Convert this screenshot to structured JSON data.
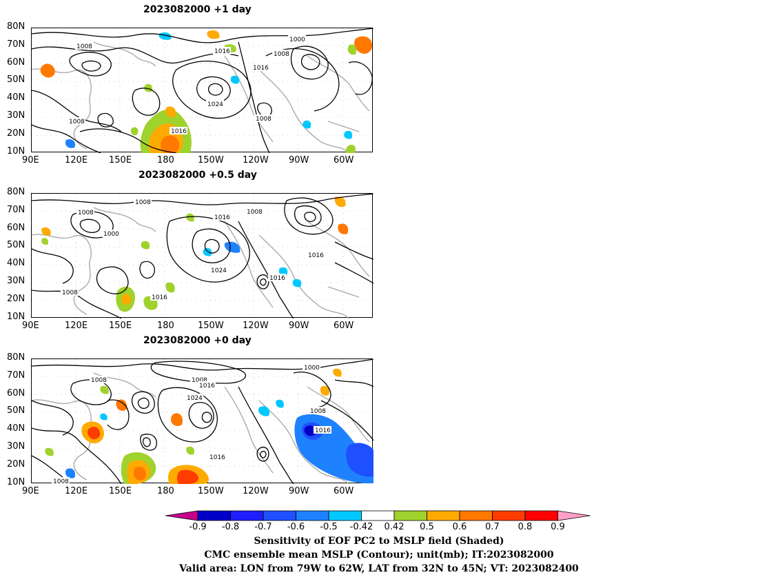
{
  "panels": [
    {
      "title": "2023082000  +1 day",
      "contour_labels": [
        "1008",
        "1016",
        "1000",
        "1008",
        "1016",
        "1024",
        "1008",
        "1008",
        "1016"
      ],
      "lat_ticks": [
        "80N",
        "70N",
        "60N",
        "50N",
        "40N",
        "30N",
        "20N",
        "10N"
      ],
      "lon_ticks": [
        "90E",
        "120E",
        "150E",
        "180",
        "150W",
        "120W",
        "90W",
        "60W"
      ]
    },
    {
      "title": "2023082000  +0.5 day",
      "contour_labels": [
        "1008",
        "1008",
        "1000",
        "1016",
        "1008",
        "1024",
        "1016",
        "1016",
        "1008",
        "1016"
      ],
      "lat_ticks": [
        "80N",
        "70N",
        "60N",
        "50N",
        "40N",
        "30N",
        "20N",
        "10N"
      ],
      "lon_ticks": [
        "90E",
        "120E",
        "150E",
        "180",
        "150W",
        "120W",
        "90W",
        "60W"
      ]
    },
    {
      "title": "2023082000  +0 day",
      "contour_labels": [
        "1008",
        "1008",
        "1016",
        "1024",
        "1000",
        "1008",
        "1016",
        "1016",
        "1008"
      ],
      "lat_ticks": [
        "80N",
        "70N",
        "60N",
        "50N",
        "40N",
        "30N",
        "20N",
        "10N"
      ],
      "lon_ticks": [
        "90E",
        "120E",
        "150E",
        "180",
        "150W",
        "120W",
        "90W",
        "60W"
      ]
    }
  ],
  "colorbar": {
    "labels": [
      "-0.9",
      "-0.8",
      "-0.7",
      "-0.6",
      "-0.5",
      "-0.42",
      "0.42",
      "0.5",
      "0.6",
      "0.7",
      "0.8",
      "0.9"
    ],
    "colors": [
      "#0000c8",
      "#1e1eff",
      "#1e50ff",
      "#1e82ff",
      "#00c8ff",
      "#ffffff",
      "#a0d22d",
      "#ffaa00",
      "#ff7800",
      "#ff3c00",
      "#ff0000"
    ],
    "low_end_color": "#c8008c",
    "high_end_color": "#ffa0c8"
  },
  "captions": {
    "line1": "Sensitivity of EOF PC2 to MSLP field (Shaded)",
    "line2": "CMC ensemble mean MSLP (Contour); unit(mb); IT:2023082000",
    "line3": "Valid area: LON from 79W to 62W, LAT from 32N to 45N; VT: 2023082400"
  }
}
